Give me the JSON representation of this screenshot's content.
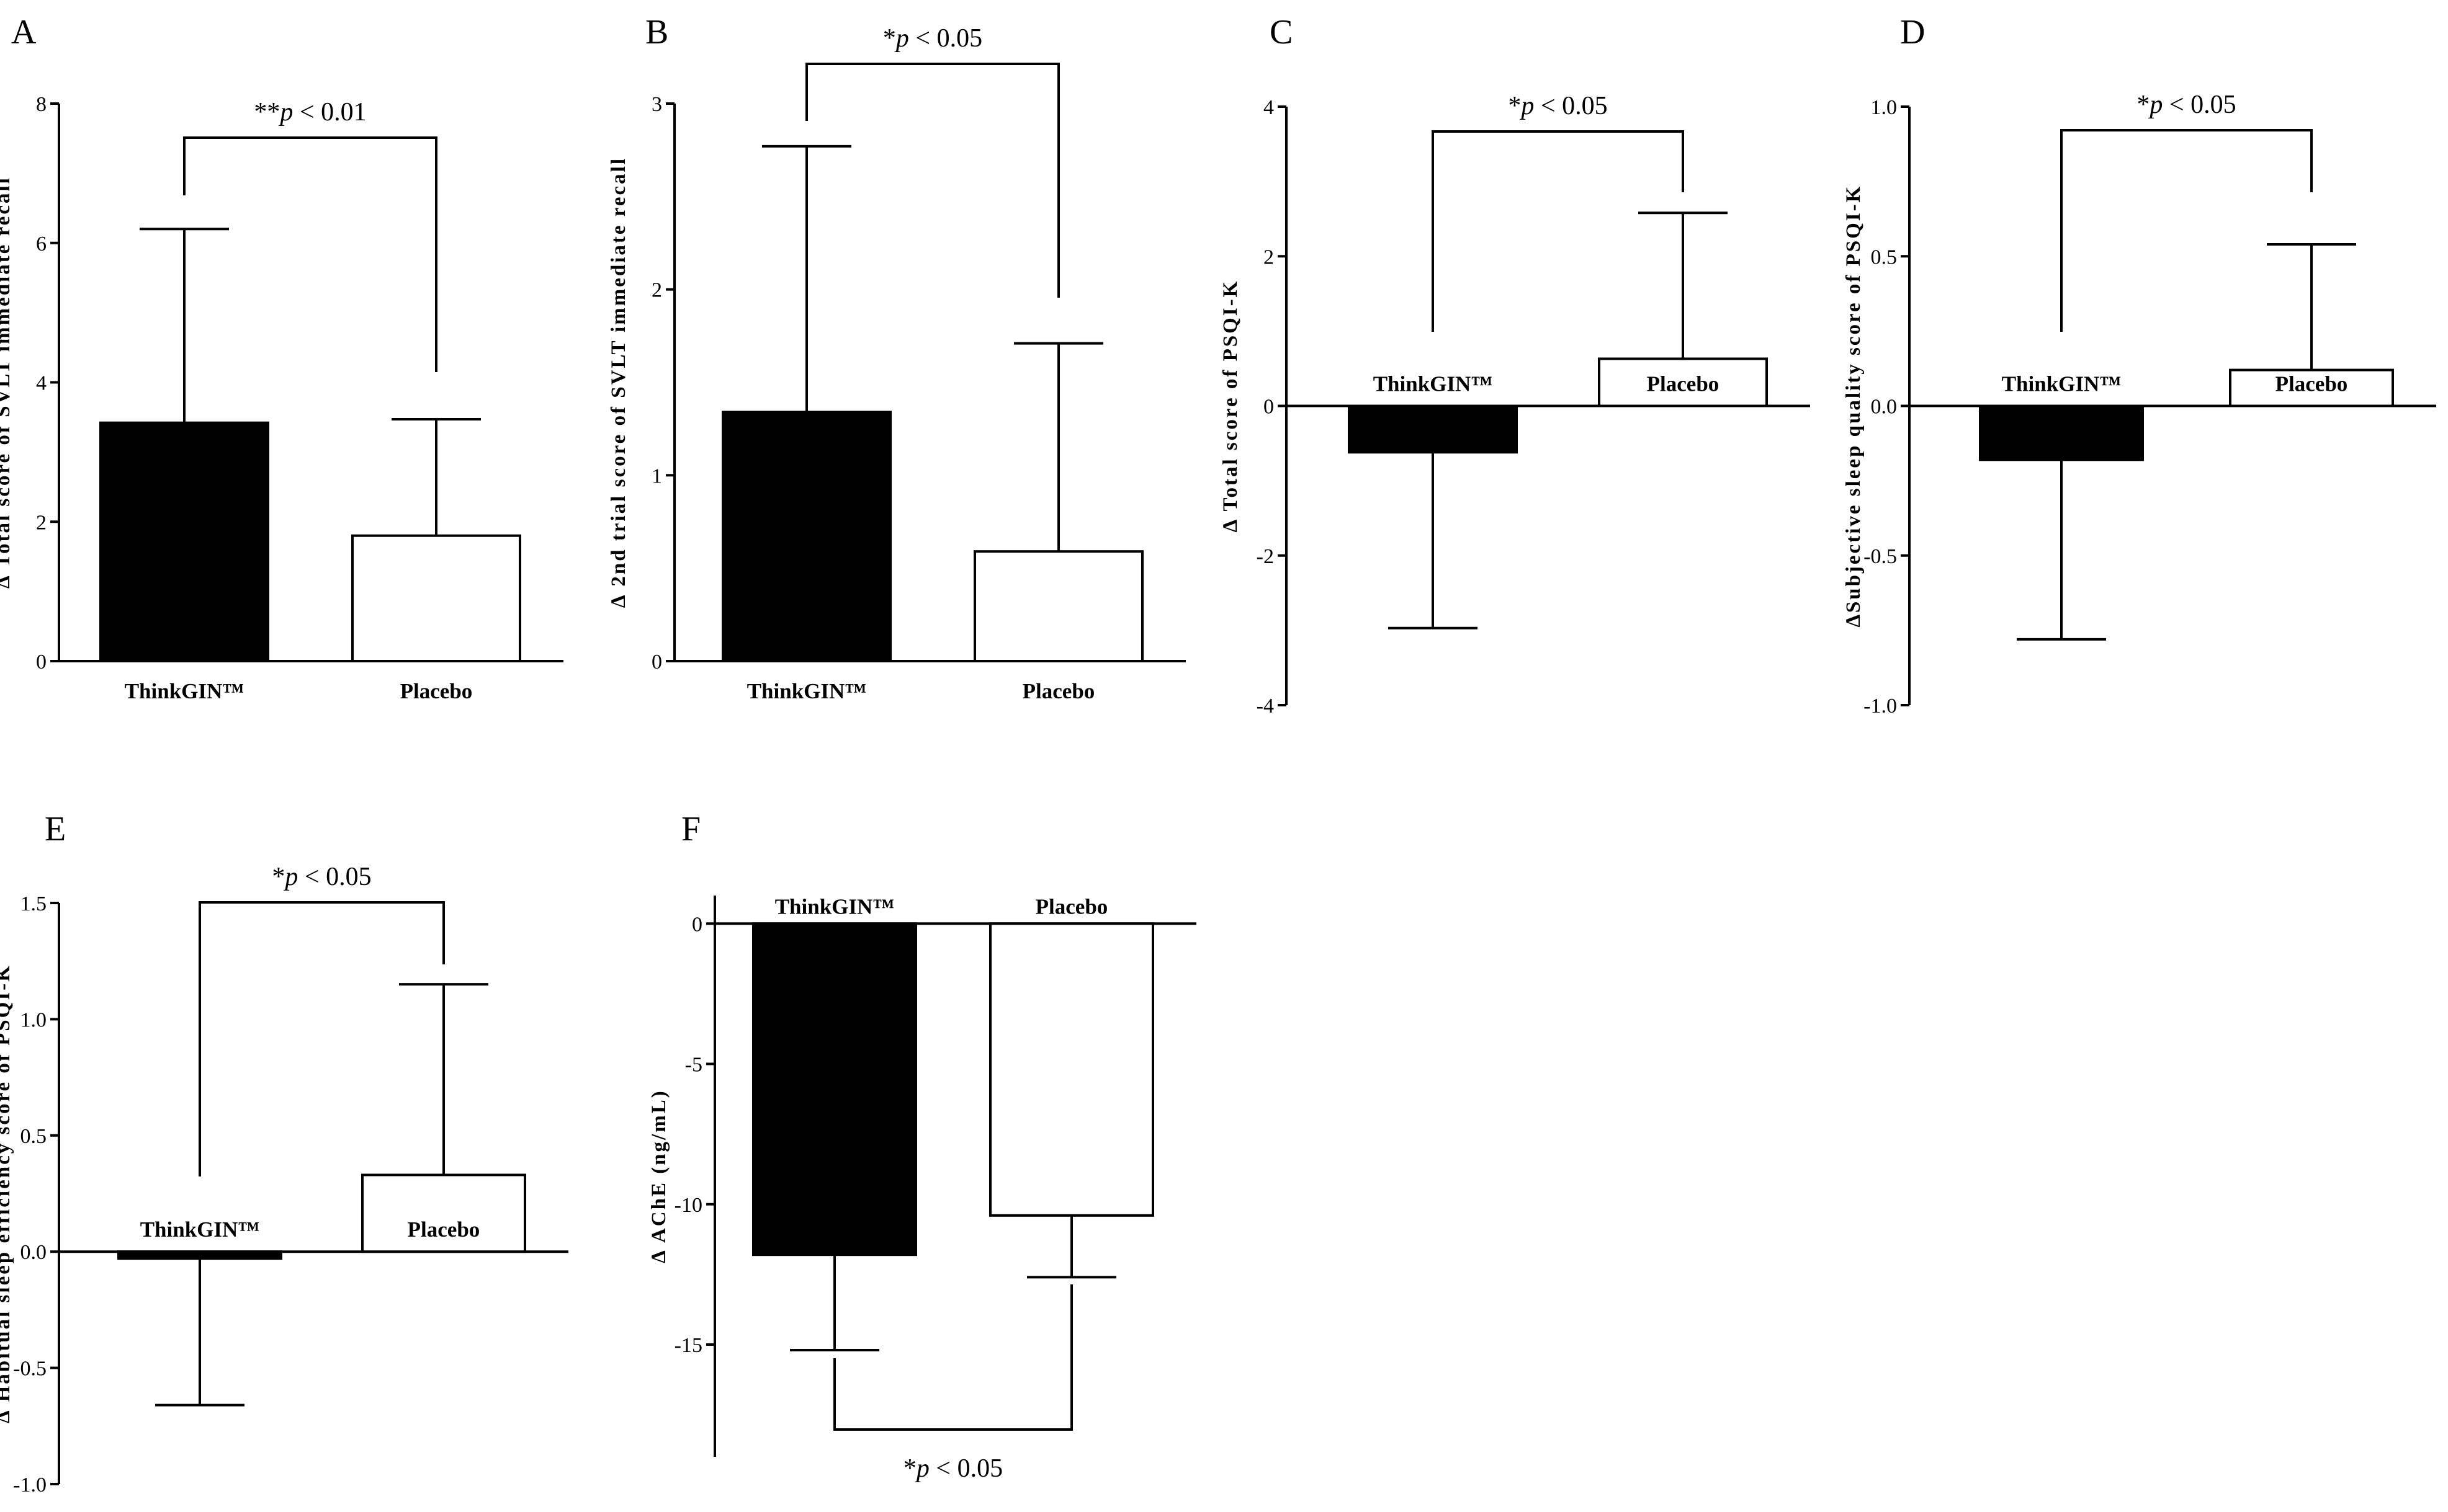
{
  "figure": {
    "bar_colors": {
      "ThinkGIN": "#000000",
      "Placebo": "#ffffff"
    },
    "axis_color": "#000000"
  },
  "chart_data": [
    {
      "panel": "A",
      "type": "bar",
      "ylabel": "∆ Total score of SVLT immediate recall",
      "categories": [
        "ThinkGIN™",
        "Placebo"
      ],
      "values": [
        3.42,
        1.8
      ],
      "errors": [
        2.78,
        1.67
      ],
      "error_direction": "up",
      "ylim": [
        0,
        8
      ],
      "yticks": [
        0,
        2,
        4,
        6,
        8
      ],
      "tick_labels": [
        "0",
        "2",
        "4",
        "6",
        "8"
      ],
      "label_position": "below",
      "significance": {
        "prefix": "**",
        "p": "p",
        "rest": " < 0.01",
        "side": "top"
      }
    },
    {
      "panel": "B",
      "type": "bar",
      "ylabel": "∆ 2nd trial score of SVLT immediate recall",
      "categories": [
        "ThinkGIN™",
        "Placebo"
      ],
      "values": [
        1.34,
        0.59
      ],
      "errors": [
        1.43,
        1.12
      ],
      "error_direction": "up",
      "ylim": [
        0,
        3
      ],
      "yticks": [
        0,
        1,
        2,
        3
      ],
      "tick_labels": [
        "0",
        "1",
        "2",
        "3"
      ],
      "label_position": "below",
      "significance": {
        "prefix": "*",
        "p": "p",
        "rest": " < 0.05",
        "side": "top"
      }
    },
    {
      "panel": "C",
      "type": "bar",
      "ylabel": "∆ Total score of PSQI-K",
      "categories": [
        "ThinkGIN™",
        "Placebo"
      ],
      "values": [
        -0.62,
        0.63
      ],
      "errors": [
        2.35,
        1.95
      ],
      "error_direction": "away",
      "ylim": [
        -4,
        4
      ],
      "yticks": [
        -4,
        -2,
        0,
        2,
        4
      ],
      "tick_labels": [
        "-4",
        "-2",
        "0",
        "2",
        "4"
      ],
      "label_position": "zero",
      "significance": {
        "prefix": "*",
        "p": "p",
        "rest": " < 0.05",
        "side": "top"
      }
    },
    {
      "panel": "D",
      "type": "bar",
      "ylabel": "∆Subjective sleep quality score of PSQI-K",
      "categories": [
        "ThinkGIN™",
        "Placebo"
      ],
      "values": [
        -0.18,
        0.12
      ],
      "errors": [
        0.6,
        0.42
      ],
      "error_direction": "away",
      "ylim": [
        -1.0,
        1.0
      ],
      "yticks": [
        -1.0,
        -0.5,
        0.0,
        0.5,
        1.0
      ],
      "tick_labels": [
        "-1.0",
        "-0.5",
        "0.0",
        "0.5",
        "1.0"
      ],
      "label_position": "zero",
      "significance": {
        "prefix": "*",
        "p": "p",
        "rest": " < 0.05",
        "side": "top"
      }
    },
    {
      "panel": "E",
      "type": "bar",
      "ylabel": "∆ Habitual sleep efficiency score of PSQI-K",
      "categories": [
        "ThinkGIN™",
        "Placebo"
      ],
      "values": [
        -0.03,
        0.33
      ],
      "errors": [
        0.63,
        0.82
      ],
      "error_direction": "away",
      "ylim": [
        -1.0,
        1.5
      ],
      "yticks": [
        -1.0,
        -0.5,
        0.0,
        0.5,
        1.0,
        1.5
      ],
      "tick_labels": [
        "-1.0",
        "-0.5",
        "0.0",
        "0.5",
        "1.0",
        "1.5"
      ],
      "label_position": "zero",
      "significance": {
        "prefix": "*",
        "p": "p",
        "rest": " < 0.05",
        "side": "top"
      }
    },
    {
      "panel": "F",
      "type": "bar",
      "ylabel": "∆ AChE (ng/mL)",
      "categories": [
        "ThinkGIN™",
        "Placebo"
      ],
      "values": [
        -11.8,
        -10.4
      ],
      "errors": [
        3.4,
        2.2
      ],
      "error_direction": "away",
      "ylim": [
        -19,
        1
      ],
      "yticks": [
        -15,
        -10,
        -5,
        0
      ],
      "tick_labels": [
        "-15",
        "-10",
        "-5",
        "0"
      ],
      "label_position": "zero-above",
      "significance": {
        "prefix": "*",
        "p": "p",
        "rest": " < 0.05",
        "side": "bottom"
      }
    }
  ]
}
